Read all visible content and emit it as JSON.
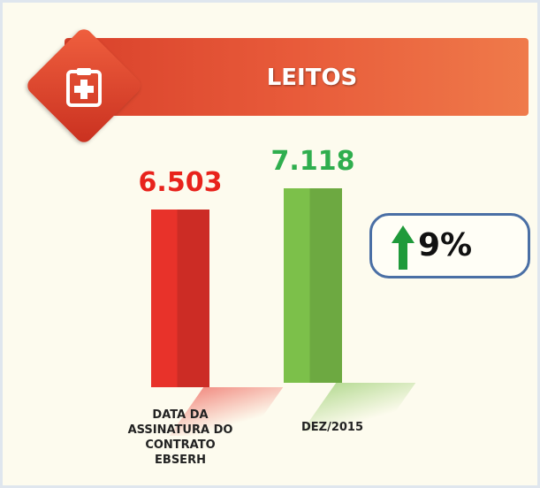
{
  "chart_data": {
    "type": "bar",
    "title": "LEITOS",
    "categories": [
      "DATA DA ASSINATURA DO CONTRATO EBSERH",
      "DEZ/2015"
    ],
    "values": [
      6503,
      7118
    ],
    "value_labels": [
      "6.503",
      "7.118"
    ],
    "colors": [
      "#e8322a",
      "#7cc04a"
    ],
    "label_colors": [
      "#e8231c",
      "#2fae4e"
    ],
    "annotation": "9%"
  }
}
